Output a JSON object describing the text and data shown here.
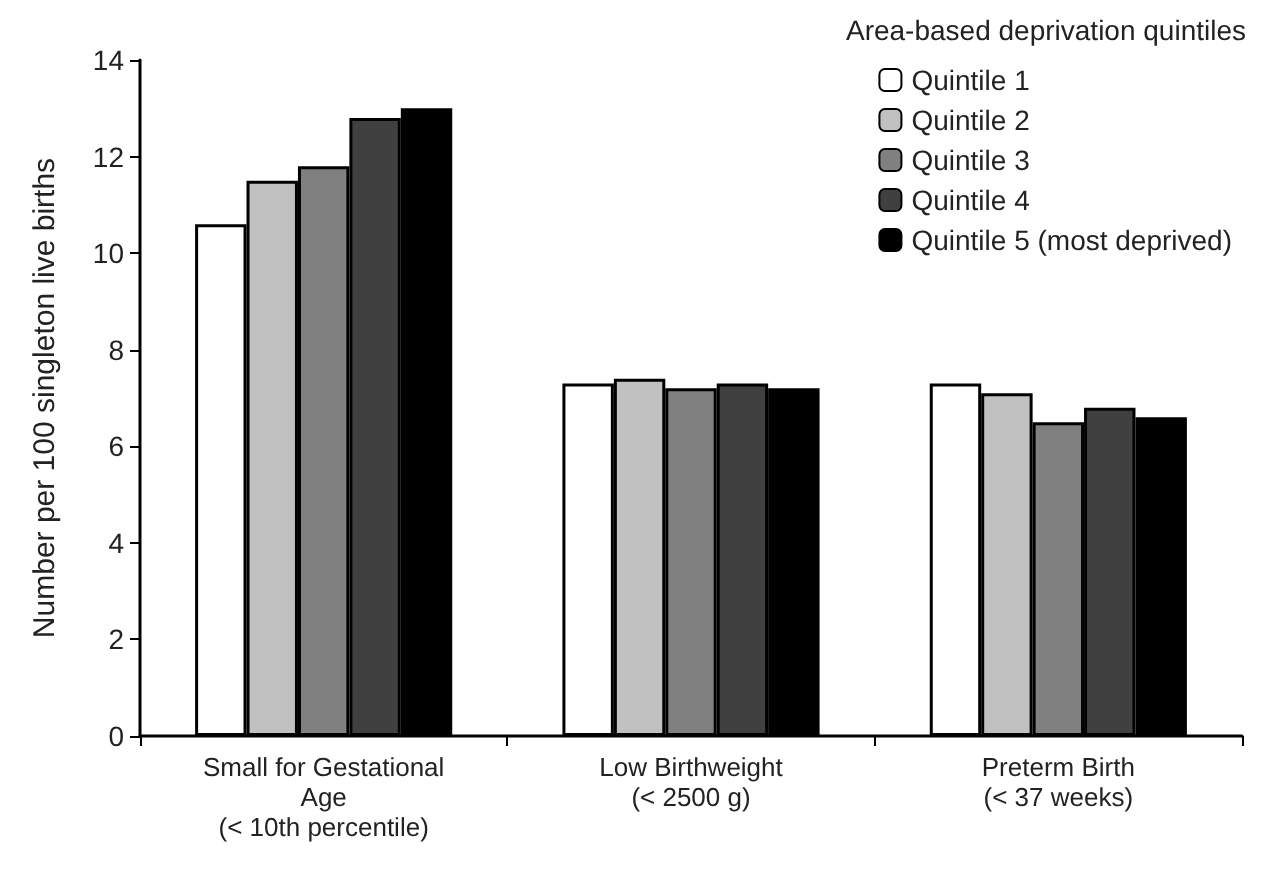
{
  "chart_data": {
    "type": "bar",
    "ylabel": "Number per 100 singleton live births",
    "legend_title": "Area-based deprivation quintiles",
    "categories": [
      "Small for Gestational\nAge\n(< 10th percentile)",
      "Low Birthweight\n(< 2500 g)",
      "Preterm Birth\n(< 37 weeks)"
    ],
    "series": [
      {
        "name": "Quintile 1",
        "color": "#ffffff",
        "values": [
          10.6,
          7.3,
          7.3
        ]
      },
      {
        "name": "Quintile 2",
        "color": "#c0c0c0",
        "values": [
          11.5,
          7.4,
          7.1
        ]
      },
      {
        "name": "Quintile 3",
        "color": "#808080",
        "values": [
          11.8,
          7.2,
          6.5
        ]
      },
      {
        "name": "Quintile 4",
        "color": "#404040",
        "values": [
          12.8,
          7.3,
          6.8
        ]
      },
      {
        "name": "Quintile 5 (most deprived)",
        "color": "#000000",
        "values": [
          13.0,
          7.2,
          6.6
        ]
      }
    ],
    "ylim": [
      0,
      14
    ],
    "yticks": [
      0,
      2,
      4,
      6,
      8,
      10,
      12,
      14
    ],
    "grid": false,
    "legend": "top right"
  }
}
